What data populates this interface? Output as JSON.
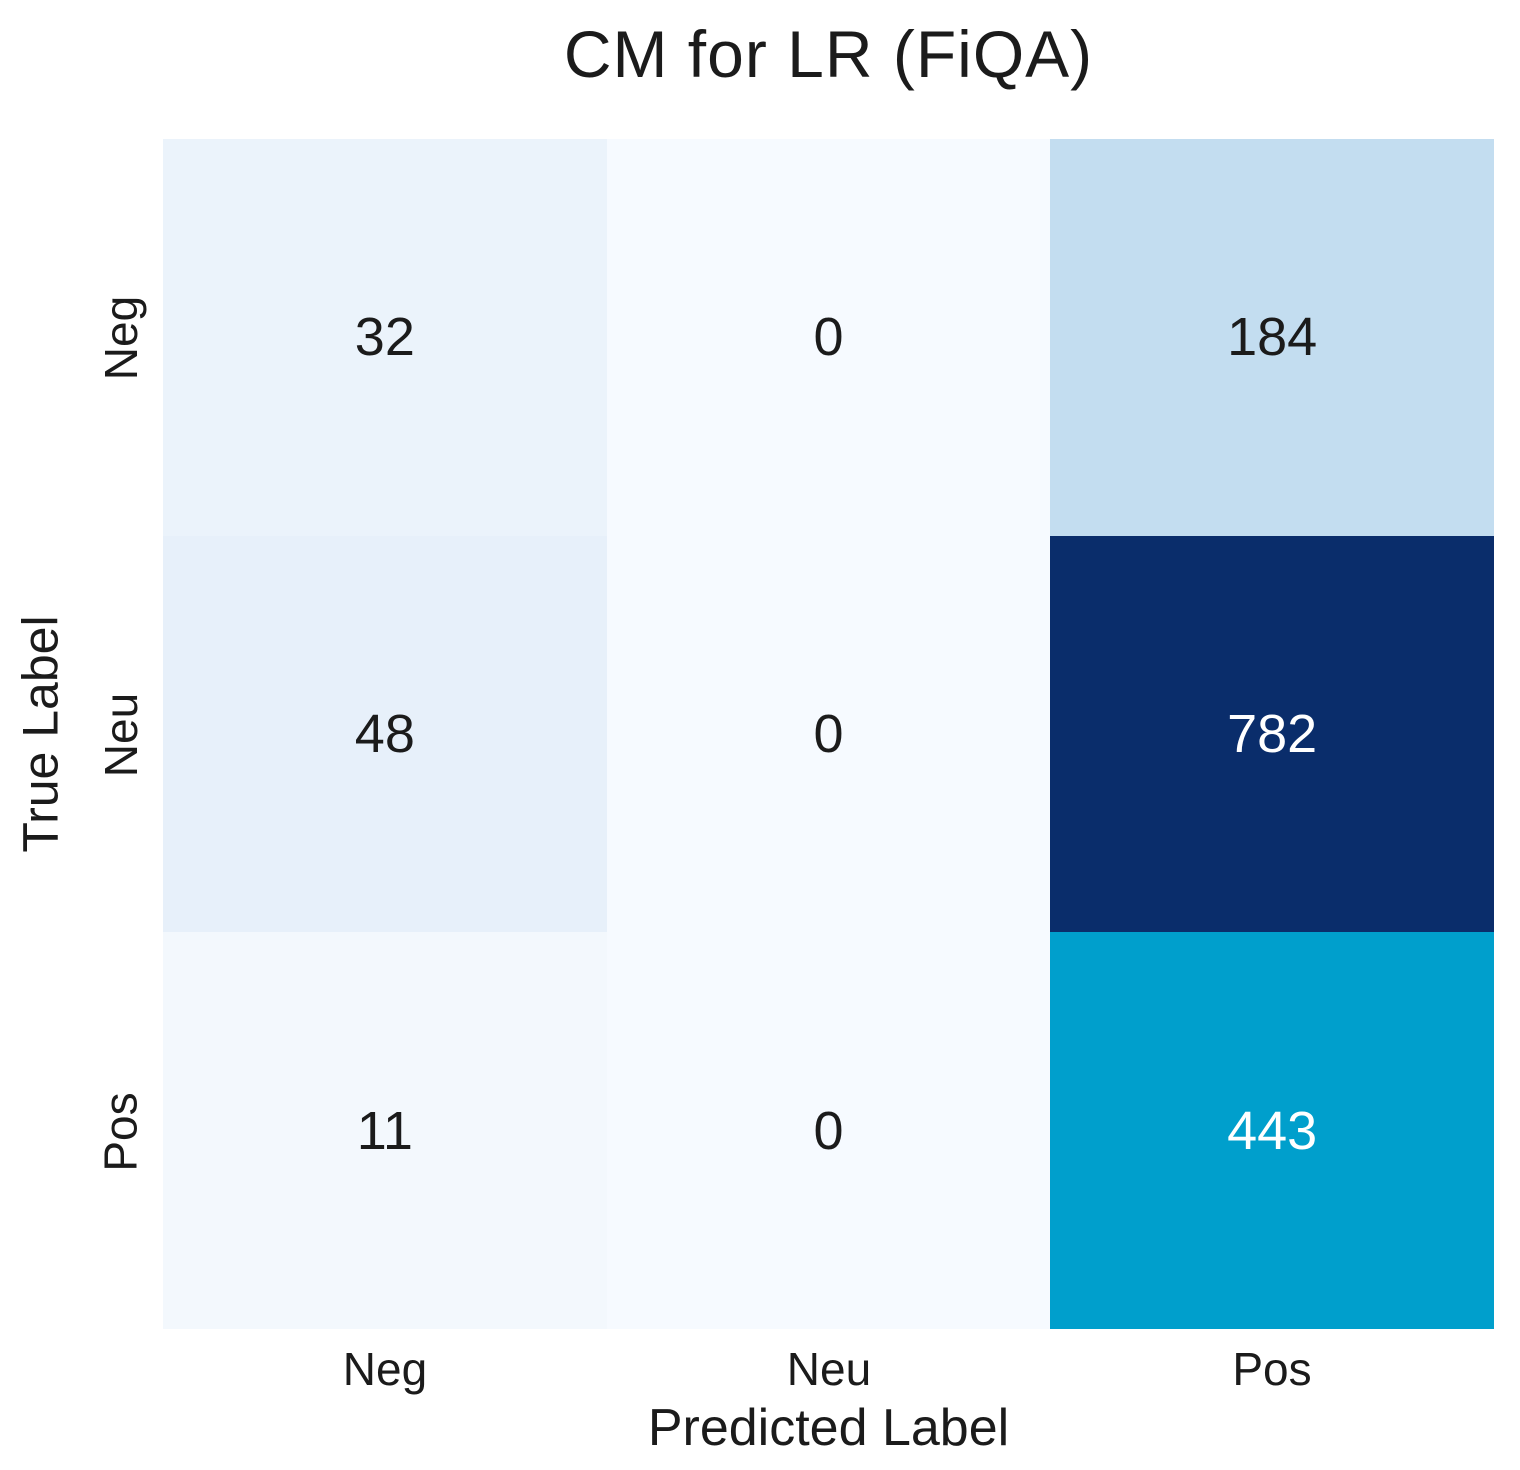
{
  "chart_data": {
    "type": "heatmap",
    "title": "CM for LR (FiQA)",
    "xlabel": "Predicted Label",
    "ylabel": "True Label",
    "x_categories": [
      "Neg",
      "Neu",
      "Pos"
    ],
    "y_categories": [
      "Neg",
      "Neu",
      "Pos"
    ],
    "values": [
      [
        32,
        0,
        184
      ],
      [
        48,
        0,
        782
      ],
      [
        11,
        0,
        443
      ]
    ],
    "cell_colors": [
      [
        "#ebf3fb",
        "#f6faff",
        "#c3ddf0"
      ],
      [
        "#e7f0fa",
        "#f6faff",
        "#0a2d6b"
      ],
      [
        "#f3f8fd",
        "#f6faff",
        "#009fcc"
      ]
    ],
    "value_text_colors": [
      [
        "#1b1b1b",
        "#1b1b1b",
        "#1b1b1b"
      ],
      [
        "#1b1b1b",
        "#1b1b1b",
        "#ffffff"
      ],
      [
        "#1b1b1b",
        "#1b1b1b",
        "#ffffff"
      ]
    ],
    "colormap": "blues-like",
    "value_range": [
      0,
      782
    ],
    "grid": false,
    "legend": false,
    "background_color": "#ffffff"
  }
}
